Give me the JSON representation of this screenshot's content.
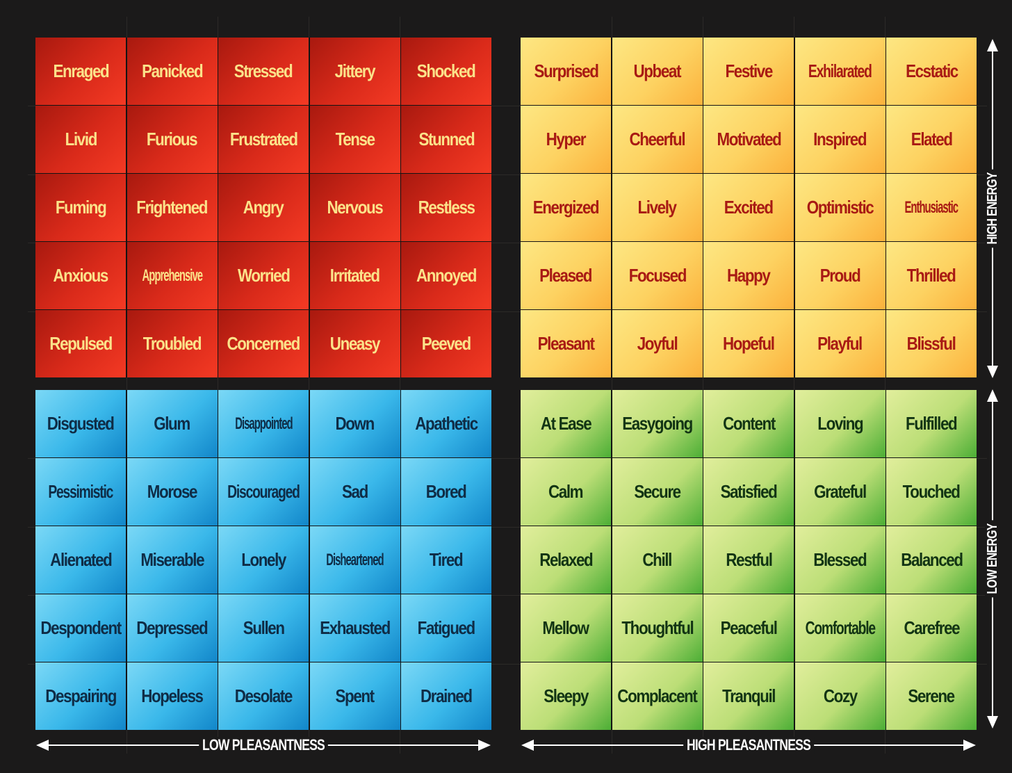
{
  "quadrants": {
    "red": {
      "cells": [
        "Enraged",
        "Panicked",
        "Stressed",
        "Jittery",
        "Shocked",
        "Livid",
        "Furious",
        "Frustrated",
        "Tense",
        "Stunned",
        "Fuming",
        "Frightened",
        "Angry",
        "Nervous",
        "Restless",
        "Anxious",
        "Apprehensive",
        "Worried",
        "Irritated",
        "Annoyed",
        "Repulsed",
        "Troubled",
        "Concerned",
        "Uneasy",
        "Peeved"
      ],
      "text_color": "#fbe28a",
      "fill_color": "#d92a1a"
    },
    "yellow": {
      "cells": [
        "Surprised",
        "Upbeat",
        "Festive",
        "Exhilarated",
        "Ecstatic",
        "Hyper",
        "Cheerful",
        "Motivated",
        "Inspired",
        "Elated",
        "Energized",
        "Lively",
        "Excited",
        "Optimistic",
        "Enthusiastic",
        "Pleased",
        "Focused",
        "Happy",
        "Proud",
        "Thrilled",
        "Pleasant",
        "Joyful",
        "Hopeful",
        "Playful",
        "Blissful"
      ],
      "text_color": "#a81a14",
      "fill_color": "#fdd261"
    },
    "blue": {
      "cells": [
        "Disgusted",
        "Glum",
        "Disappointed",
        "Down",
        "Apathetic",
        "Pessimistic",
        "Morose",
        "Discouraged",
        "Sad",
        "Bored",
        "Alienated",
        "Miserable",
        "Lonely",
        "Disheartened",
        "Tired",
        "Despondent",
        "Depressed",
        "Sullen",
        "Exhausted",
        "Fatigued",
        "Despairing",
        "Hopeless",
        "Desolate",
        "Spent",
        "Drained"
      ],
      "text_color": "#0f2c46",
      "fill_color": "#3ab8ea"
    },
    "green": {
      "cells": [
        "At Ease",
        "Easygoing",
        "Content",
        "Loving",
        "Fulfilled",
        "Calm",
        "Secure",
        "Satisfied",
        "Grateful",
        "Touched",
        "Relaxed",
        "Chill",
        "Restful",
        "Blessed",
        "Balanced",
        "Mellow",
        "Thoughtful",
        "Peaceful",
        "Comfortable",
        "Carefree",
        "Sleepy",
        "Complacent",
        "Tranquil",
        "Cozy",
        "Serene"
      ],
      "text_color": "#123414",
      "fill_color": "#bcde77"
    }
  },
  "axes": {
    "x_left_label": "LOW PLEASANTNESS",
    "x_right_label": "HIGH PLEASANTNESS",
    "y_top_label": "HIGH ENERGY",
    "y_bottom_label": "LOW ENERGY"
  }
}
